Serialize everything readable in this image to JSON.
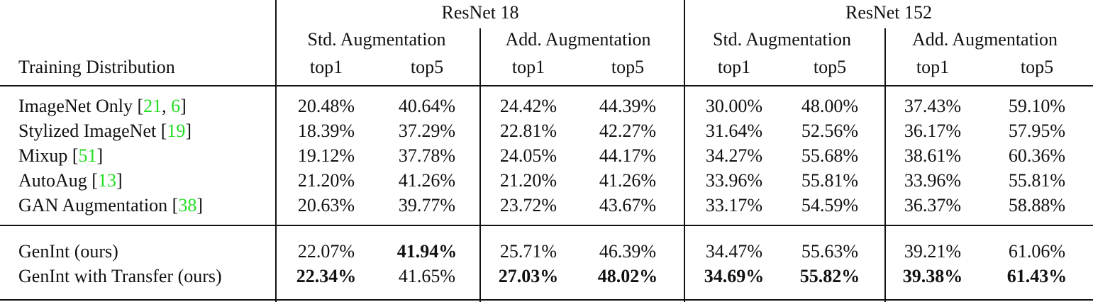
{
  "header": {
    "row_label": "Training Distribution",
    "groups": [
      {
        "title": "ResNet 18",
        "subgroups": [
          {
            "title": "Std. Augmentation",
            "columns": [
              "top1",
              "top5"
            ]
          },
          {
            "title": "Add. Augmentation",
            "columns": [
              "top1",
              "top5"
            ]
          }
        ]
      },
      {
        "title": "ResNet 152",
        "subgroups": [
          {
            "title": "Std. Augmentation",
            "columns": [
              "top1",
              "top5"
            ]
          },
          {
            "title": "Add. Augmentation",
            "columns": [
              "top1",
              "top5"
            ]
          }
        ]
      }
    ]
  },
  "sections": [
    {
      "rows": [
        {
          "label": [
            "ImageNet Only [",
            "21",
            ", ",
            "6",
            "]"
          ],
          "values": [
            "20.48%",
            "40.64%",
            "24.42%",
            "44.39%",
            "30.00%",
            "48.00%",
            "37.43%",
            "59.10%"
          ],
          "bold": []
        },
        {
          "label": [
            "Stylized ImageNet [",
            "19",
            "]"
          ],
          "values": [
            "18.39%",
            "37.29%",
            "22.81%",
            "42.27%",
            "31.64%",
            "52.56%",
            "36.17%",
            "57.95%"
          ],
          "bold": []
        },
        {
          "label": [
            "Mixup [",
            "51",
            "]"
          ],
          "values": [
            "19.12%",
            "37.78%",
            "24.05%",
            "44.17%",
            "34.27%",
            "55.68%",
            "38.61%",
            "60.36%"
          ],
          "bold": []
        },
        {
          "label": [
            "AutoAug [",
            "13",
            "]"
          ],
          "values": [
            "21.20%",
            "41.26%",
            "21.20%",
            "41.26%",
            "33.96%",
            "55.81%",
            "33.96%",
            "55.81%"
          ],
          "bold": []
        },
        {
          "label": [
            "GAN Augmentation [",
            "38",
            "]"
          ],
          "values": [
            "20.63%",
            "39.77%",
            "23.72%",
            "43.67%",
            "33.17%",
            "54.59%",
            "36.37%",
            "58.88%"
          ],
          "bold": []
        }
      ]
    },
    {
      "rows": [
        {
          "label": [
            "GenInt (ours)"
          ],
          "values": [
            "22.07%",
            "41.94%",
            "25.71%",
            "46.39%",
            "34.47%",
            "55.63%",
            "39.21%",
            "61.06%"
          ],
          "bold": [
            1
          ]
        },
        {
          "label": [
            "GenInt with Transfer (ours)"
          ],
          "values": [
            "22.34%",
            "41.65%",
            "27.03%",
            "48.02%",
            "34.69%",
            "55.82%",
            "39.38%",
            "61.43%"
          ],
          "bold": [
            0,
            2,
            3,
            4,
            5,
            6,
            7
          ]
        }
      ]
    }
  ]
}
